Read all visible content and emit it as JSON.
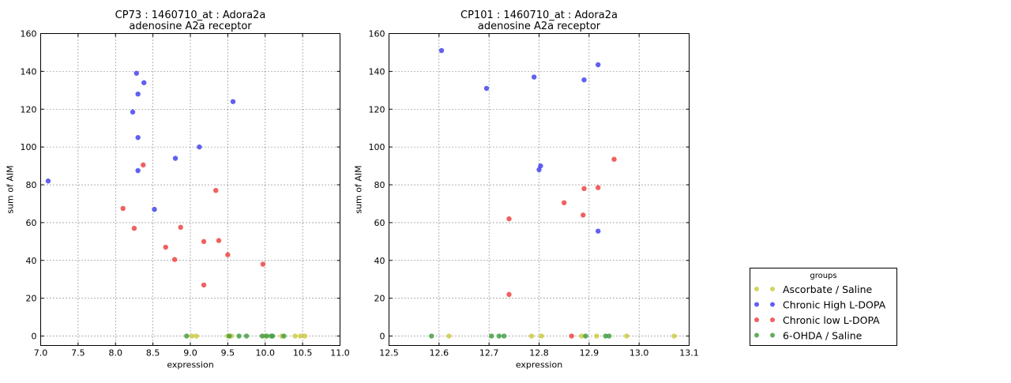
{
  "legend": {
    "title": "groups",
    "entries": [
      {
        "label": "Ascorbate / Saline",
        "color": "#cccc44"
      },
      {
        "label": "Chronic High L-DOPA",
        "color": "#4444ee"
      },
      {
        "label": "Chronic low L-DOPA",
        "color": "#ee4444"
      },
      {
        "label": "6-OHDA / Saline",
        "color": "#44a044"
      }
    ]
  },
  "chart_data": [
    {
      "type": "scatter",
      "title": "CP73 : 1460710_at : Adora2a",
      "subtitle": "adenosine A2a receptor",
      "xlabel": "expression",
      "ylabel": "sum of AIM",
      "xlim": [
        7.0,
        11.0
      ],
      "ylim": [
        -5,
        160
      ],
      "xticks": [
        "7.0",
        "7.5",
        "8.0",
        "8.5",
        "9.0",
        "9.5",
        "10.0",
        "10.5",
        "11.0"
      ],
      "yticks": [
        "0",
        "20",
        "40",
        "60",
        "80",
        "100",
        "120",
        "140",
        "160"
      ],
      "grid": true,
      "series": [
        {
          "name": "Ascorbate / Saline",
          "points": [
            [
              9.02,
              0
            ],
            [
              9.08,
              0
            ],
            [
              9.5,
              0
            ],
            [
              9.55,
              0
            ],
            [
              10.0,
              0
            ],
            [
              10.22,
              0
            ],
            [
              10.4,
              0
            ],
            [
              10.47,
              0
            ],
            [
              10.53,
              0
            ]
          ]
        },
        {
          "name": "Chronic High L-DOPA",
          "points": [
            [
              7.1,
              82
            ],
            [
              8.23,
              118.5
            ],
            [
              8.28,
              139
            ],
            [
              8.3,
              128
            ],
            [
              8.3,
              105
            ],
            [
              8.3,
              87.5
            ],
            [
              8.38,
              134
            ],
            [
              8.52,
              67
            ],
            [
              8.8,
              94
            ],
            [
              9.12,
              100
            ],
            [
              9.57,
              124
            ]
          ]
        },
        {
          "name": "Chronic low L-DOPA",
          "points": [
            [
              8.1,
              67.5
            ],
            [
              8.25,
              57
            ],
            [
              8.37,
              90.5
            ],
            [
              8.67,
              47
            ],
            [
              8.79,
              40.5
            ],
            [
              8.87,
              57.5
            ],
            [
              9.18,
              50
            ],
            [
              9.18,
              27
            ],
            [
              9.34,
              77
            ],
            [
              9.38,
              50.5
            ],
            [
              9.5,
              43
            ],
            [
              9.97,
              38
            ]
          ]
        },
        {
          "name": "6-OHDA / Saline",
          "points": [
            [
              8.95,
              0
            ],
            [
              9.52,
              0
            ],
            [
              9.65,
              0
            ],
            [
              9.75,
              0
            ],
            [
              9.96,
              0
            ],
            [
              10.02,
              0
            ],
            [
              10.08,
              0
            ],
            [
              10.1,
              0
            ],
            [
              10.25,
              0
            ]
          ]
        }
      ]
    },
    {
      "type": "scatter",
      "title": "CP101 : 1460710_at : Adora2a",
      "subtitle": "adenosine A2a receptor",
      "xlabel": "expression",
      "ylabel": "sum of AIM",
      "xlim": [
        12.5,
        13.1
      ],
      "ylim": [
        -5,
        160
      ],
      "xticks": [
        "12.5",
        "12.6",
        "12.7",
        "12.8",
        "12.9",
        "13.0",
        "13.1"
      ],
      "yticks": [
        "0",
        "20",
        "40",
        "60",
        "80",
        "100",
        "120",
        "140",
        "160"
      ],
      "grid": true,
      "series": [
        {
          "name": "Ascorbate / Saline",
          "points": [
            [
              12.62,
              0
            ],
            [
              12.785,
              0
            ],
            [
              12.805,
              0
            ],
            [
              12.885,
              0
            ],
            [
              12.915,
              0
            ],
            [
              12.975,
              0
            ],
            [
              13.07,
              0
            ]
          ]
        },
        {
          "name": "Chronic High L-DOPA",
          "points": [
            [
              12.605,
              151
            ],
            [
              12.695,
              131
            ],
            [
              12.79,
              137
            ],
            [
              12.8,
              88
            ],
            [
              12.803,
              90
            ],
            [
              12.89,
              135.5
            ],
            [
              12.918,
              143.5
            ],
            [
              12.918,
              55.5
            ]
          ]
        },
        {
          "name": "Chronic low L-DOPA",
          "points": [
            [
              12.74,
              62
            ],
            [
              12.74,
              22
            ],
            [
              12.85,
              70.5
            ],
            [
              12.865,
              0
            ],
            [
              12.888,
              64
            ],
            [
              12.89,
              78
            ],
            [
              12.918,
              78.5
            ],
            [
              12.95,
              93.5
            ]
          ]
        },
        {
          "name": "6-OHDA / Saline",
          "points": [
            [
              12.585,
              0
            ],
            [
              12.705,
              0
            ],
            [
              12.72,
              0
            ],
            [
              12.73,
              0
            ],
            [
              12.893,
              0
            ],
            [
              12.933,
              0
            ],
            [
              12.94,
              0
            ]
          ]
        }
      ]
    }
  ]
}
